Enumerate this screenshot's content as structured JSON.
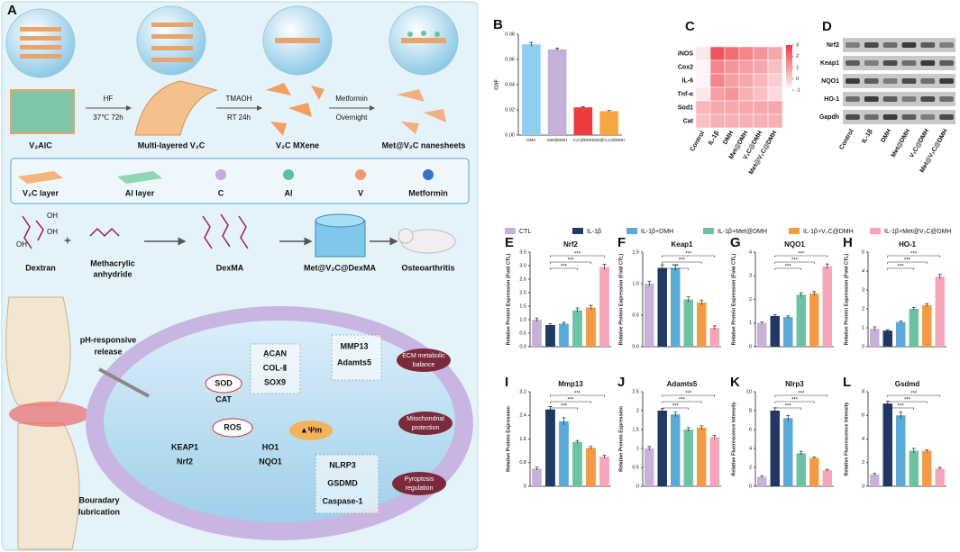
{
  "panel_a": {
    "label": "A",
    "steps": [
      "HF",
      "37℃ 72h",
      "TMAOH",
      "RT 24h",
      "Metformin",
      "Overnight"
    ],
    "materials": [
      "V₂AlC",
      "Multi-layered V₂C",
      "V₂C MXene",
      "Met@V₂C nanesheets"
    ],
    "key": [
      "V₂C layer",
      "Al layer",
      "C",
      "Al",
      "V",
      "Metformin"
    ],
    "dextran_groups": [
      "OH",
      "OH",
      "OH"
    ],
    "synthesis": [
      "Dextran",
      "Methacrylic",
      "anhydride",
      "DexMA",
      "Met@V₂C@DexMA",
      "Osteoarthritis"
    ],
    "release": [
      "pH-responsive",
      "release"
    ],
    "lubrication": [
      "Bouradary",
      "lubrication"
    ],
    "cell": [
      "SOD",
      "CAT",
      "ROS",
      "▲Ψm",
      "ACAN",
      "COL-Ⅱ",
      "SOX9",
      "MMP13",
      "Adamts5",
      "ECM metabolic",
      "balance",
      "Mitochondrial",
      "protection",
      "KEAP1",
      "Nrf2",
      "HO1",
      "NQO1",
      "NLRP3",
      "GSDMD",
      "Caspase-1",
      "Pyroptosis",
      "regulation"
    ]
  },
  "legend": {
    "names": [
      "CTL",
      "IL-1β",
      "IL-1β+DMH",
      "IL-1β+Met@DMH",
      "IL-1β+V₂C@DMH",
      "IL-1β+Met@V₂C@DMH"
    ],
    "colors": [
      "#c6b2d8",
      "#1f3864",
      "#5aa9d6",
      "#6cc3a4",
      "#f29b44",
      "#f5a6ba"
    ]
  },
  "chart_data": [
    {
      "type": "bar",
      "label": "B",
      "ylabel": "COF",
      "categories": [
        "DMH",
        "Met@DMH",
        "V₂C@DMH",
        "Met@V₂C@DMH"
      ],
      "colors": [
        "#8fd0ee",
        "#c4b0d8",
        "#ee3b3b",
        "#f5a742"
      ],
      "values": [
        0.072,
        0.068,
        0.022,
        0.019
      ],
      "errors": [
        0.0015,
        0.001,
        0.0005,
        0.0005
      ],
      "ylim": [
        0,
        0.08
      ],
      "yticks": [
        {
          "value": 0,
          "label": "0.00"
        },
        {
          "value": 0.02,
          "label": "0.02"
        },
        {
          "value": 0.04,
          "label": "0.04"
        },
        {
          "value": 0.06,
          "label": "0.06"
        },
        {
          "value": 0.08,
          "label": "0.08"
        }
      ]
    },
    {
      "type": "heatmap",
      "label": "C",
      "rows": [
        "iNOS",
        "Cox2",
        "IL-6",
        "Tnf-α",
        "Sod1",
        "Cat"
      ],
      "columns": [
        "Control",
        "IL-1β",
        "DMH",
        "Met@DMH",
        "V₂C@DMH",
        "Met@V₂C@DMH"
      ],
      "values": [
        [
          -0.5,
          2.5,
          2.0,
          1.5,
          1.2,
          0.8
        ],
        [
          -0.8,
          1.5,
          1.2,
          1.0,
          0.8,
          0.3
        ],
        [
          -0.8,
          1.5,
          1.0,
          0.8,
          0.5,
          0
        ],
        [
          -0.5,
          1.0,
          1.2,
          0.6,
          0.3,
          -0.2
        ],
        [
          0.5,
          0.8,
          0.8,
          0.8,
          0.8,
          0.8
        ],
        [
          0.3,
          0.6,
          0.6,
          0.6,
          0.6,
          0.6
        ]
      ],
      "zlim": [
        -1,
        3
      ],
      "zticks": [
        -1,
        0,
        1,
        2,
        3
      ]
    },
    {
      "type": "blot",
      "label": "D",
      "rows": [
        "Nrf2",
        "Keap1",
        "NQO1",
        "HO-1",
        "Gapdh"
      ],
      "columns": [
        "Control",
        "IL-1β",
        "DMH",
        "Met@DMH",
        "V₂C@DMH",
        "Met@V₂C@DMH"
      ]
    },
    {
      "type": "bar",
      "label": "E",
      "title": "Nrf2",
      "ylabel": "Relative Protein Expression (Fold CTL)",
      "values": [
        1.0,
        0.8,
        0.85,
        1.35,
        1.45,
        2.95
      ],
      "errors": [
        0.06,
        0.05,
        0.05,
        0.08,
        0.08,
        0.1
      ],
      "ylim": [
        0,
        3.5
      ],
      "yticks": [
        {
          "value": 0,
          "label": "0.0"
        },
        0.5,
        {
          "value": 1,
          "label": "1.0"
        },
        1.5,
        {
          "value": 2,
          "label": "2.0"
        },
        2.5,
        {
          "value": 3,
          "label": "3.0"
        },
        3.5
      ],
      "annotations": [
        "***",
        "***",
        "***"
      ]
    },
    {
      "type": "bar",
      "label": "F",
      "title": "Keap1",
      "ylabel": "Relative Protein Expression (Fold CTL)",
      "values": [
        1.0,
        1.25,
        1.25,
        0.75,
        0.7,
        0.3
      ],
      "errors": [
        0.04,
        0.05,
        0.04,
        0.04,
        0.04,
        0.03
      ],
      "ylim": [
        0,
        1.5
      ],
      "yticks": [
        {
          "value": 0,
          "label": "0.0"
        },
        0.5,
        {
          "value": 1,
          "label": "1.0"
        },
        1.5
      ],
      "annotations": [
        "***",
        "***",
        "***"
      ]
    },
    {
      "type": "bar",
      "label": "G",
      "title": "NQO1",
      "ylabel": "Relative Protein Expression (Fold CTL)",
      "values": [
        1.0,
        1.3,
        1.25,
        2.2,
        2.25,
        3.4
      ],
      "errors": [
        0.05,
        0.06,
        0.05,
        0.08,
        0.08,
        0.1
      ],
      "ylim": [
        0,
        4
      ],
      "yticks": [
        0,
        1,
        2,
        3,
        4
      ],
      "annotations": [
        "***",
        "***",
        "***"
      ]
    },
    {
      "type": "bar",
      "label": "H",
      "title": "HO-1",
      "ylabel": "Relative Protein Expression (Fold CTL)",
      "values": [
        0.95,
        0.85,
        1.3,
        2.0,
        2.2,
        3.7
      ],
      "errors": [
        0.1,
        0.05,
        0.06,
        0.08,
        0.08,
        0.12
      ],
      "ylim": [
        0,
        5
      ],
      "yticks": [
        0,
        1,
        2,
        3,
        4,
        5
      ],
      "annotations": [
        "***",
        "***",
        "***"
      ]
    },
    {
      "type": "bar",
      "label": "I",
      "title": "Mmp13",
      "ylabel": "Relative Protein Expression",
      "values": [
        0.6,
        2.6,
        2.2,
        1.5,
        1.3,
        1.0
      ],
      "errors": [
        0.05,
        0.1,
        0.12,
        0.05,
        0.05,
        0.05
      ],
      "ylim": [
        0,
        3.2
      ],
      "yticks": [
        0,
        0.8,
        1.6,
        2.4,
        3.2
      ],
      "annotations": [
        "***",
        "***",
        "***"
      ]
    },
    {
      "type": "bar",
      "label": "J",
      "title": "Adamts5",
      "ylabel": "Relative Protein Expression",
      "values": [
        1.0,
        2.0,
        1.9,
        1.5,
        1.55,
        1.3
      ],
      "errors": [
        0.05,
        0.05,
        0.06,
        0.05,
        0.05,
        0.05
      ],
      "ylim": [
        0,
        2.5
      ],
      "yticks": [
        0,
        0.5,
        1,
        1.5,
        2,
        2.5
      ],
      "annotations": [
        "***",
        "***",
        "***"
      ]
    },
    {
      "type": "bar",
      "label": "K",
      "title": "Nlrp3",
      "ylabel": "Relative Fluorescence Intensity",
      "values": [
        1.0,
        8.0,
        7.2,
        3.5,
        3.0,
        1.7
      ],
      "errors": [
        0.1,
        0.3,
        0.3,
        0.2,
        0.1,
        0.1
      ],
      "ylim": [
        0,
        10
      ],
      "yticks": [
        0,
        2,
        4,
        6,
        8,
        10
      ],
      "annotations": [
        "***",
        "***",
        "***"
      ]
    },
    {
      "type": "bar",
      "label": "L",
      "title": "Gsdmd",
      "ylabel": "Relative Fluorescence Intensity",
      "values": [
        1.0,
        7.0,
        6.0,
        3.0,
        3.0,
        1.5
      ],
      "errors": [
        0.1,
        0.2,
        0.3,
        0.2,
        0.1,
        0.1
      ],
      "ylim": [
        0,
        8
      ],
      "yticks": [
        0,
        2,
        4,
        6,
        8
      ],
      "annotations": [
        "***",
        "***",
        "***"
      ]
    }
  ]
}
